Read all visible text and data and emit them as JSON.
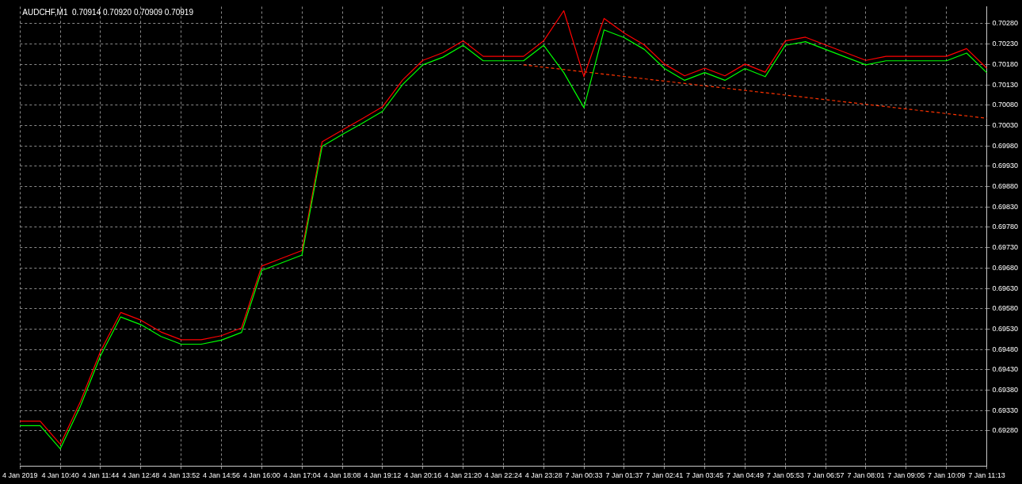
{
  "chart_data": {
    "type": "line",
    "title": "AUDCHF,M1  0.70914 0.70920 0.70909 0.70919",
    "categories": [
      "4 Jan 2019",
      null,
      "4 Jan 10:40",
      null,
      "4 Jan 11:44",
      null,
      "4 Jan 12:48",
      null,
      "4 Jan 13:52",
      null,
      "4 Jan 14:56",
      null,
      "4 Jan 16:00",
      null,
      "4 Jan 17:04",
      null,
      "4 Jan 18:08",
      null,
      "4 Jan 19:12",
      null,
      "4 Jan 20:16",
      null,
      "4 Jan 21:20",
      null,
      "4 Jan 22:24",
      null,
      "4 Jan 23:28",
      null,
      "7 Jan 00:33",
      null,
      "7 Jan 01:37",
      null,
      "7 Jan 02:41",
      null,
      "7 Jan 03:45",
      null,
      "7 Jan 04:49",
      null,
      "7 Jan 05:53",
      null,
      "7 Jan 06:57",
      null,
      "7 Jan 08:01",
      null,
      "7 Jan 09:05",
      null,
      "7 Jan 10:09",
      null,
      "7 Jan 11:13"
    ],
    "series": [
      {
        "color": "#00ff00",
        "values": [
          0.69293,
          0.69293,
          0.69236,
          0.69341,
          0.69465,
          0.6956,
          0.69541,
          0.69512,
          0.69493,
          0.69493,
          0.69503,
          0.69522,
          0.69674,
          0.69693,
          0.69712,
          0.69979,
          0.70008,
          0.70036,
          0.70065,
          0.70131,
          0.70179,
          0.70198,
          0.70227,
          0.70189,
          0.70189,
          0.70189,
          0.70227,
          0.7016,
          0.70074,
          0.70265,
          0.70246,
          0.70217,
          0.7017,
          0.70141,
          0.7016,
          0.70141,
          0.7017,
          0.7015,
          0.70227,
          0.70236,
          0.70217,
          0.70198,
          0.70179,
          0.70189,
          0.70189,
          0.70189,
          0.70189,
          0.70208,
          0.7016
        ]
      },
      {
        "color": "#ff0000",
        "values": [
          0.69304,
          0.69304,
          0.69247,
          0.69352,
          0.69476,
          0.69571,
          0.69552,
          0.69523,
          0.69504,
          0.69504,
          0.69514,
          0.69533,
          0.69685,
          0.69704,
          0.69723,
          0.6999,
          0.70019,
          0.70047,
          0.70076,
          0.70142,
          0.7019,
          0.70209,
          0.70238,
          0.702,
          0.702,
          0.702,
          0.70238,
          0.70312,
          0.7015,
          0.70293,
          0.70257,
          0.70228,
          0.70181,
          0.70152,
          0.70171,
          0.70152,
          0.70181,
          0.70161,
          0.70238,
          0.70247,
          0.70228,
          0.70209,
          0.7019,
          0.702,
          0.702,
          0.702,
          0.702,
          0.70219,
          0.70171
        ]
      },
      {
        "color": "#ff3300",
        "line_style": "dashed",
        "values": [
          null,
          null,
          null,
          null,
          null,
          null,
          null,
          null,
          null,
          null,
          null,
          null,
          null,
          null,
          null,
          null,
          null,
          null,
          null,
          null,
          null,
          null,
          null,
          null,
          null,
          0.70179,
          null,
          null,
          null,
          null,
          null,
          null,
          null,
          null,
          null,
          null,
          null,
          null,
          null,
          null,
          null,
          null,
          null,
          null,
          null,
          null,
          null,
          null,
          0.70048
        ]
      }
    ],
    "ylim": [
      0.69194,
      0.70322
    ],
    "yticks": [
      {
        "value": 0.6928,
        "label": "0.69280"
      },
      {
        "value": 0.6933,
        "label": "0.69330"
      },
      {
        "value": 0.6938,
        "label": "0.69380"
      },
      {
        "value": 0.6943,
        "label": "0.69430"
      },
      {
        "value": 0.6948,
        "label": "0.69480"
      },
      {
        "value": 0.6953,
        "label": "0.69530"
      },
      {
        "value": 0.6958,
        "label": "0.69580"
      },
      {
        "value": 0.6963,
        "label": "0.69630"
      },
      {
        "value": 0.6968,
        "label": "0.69680"
      },
      {
        "value": 0.6973,
        "label": "0.69730"
      },
      {
        "value": 0.6978,
        "label": "0.69780"
      },
      {
        "value": 0.6983,
        "label": "0.69830"
      },
      {
        "value": 0.6988,
        "label": "0.69880"
      },
      {
        "value": 0.6993,
        "label": "0.69930"
      },
      {
        "value": 0.6998,
        "label": "0.69980"
      },
      {
        "value": 0.7003,
        "label": "0.70030"
      },
      {
        "value": 0.7008,
        "label": "0.70080"
      },
      {
        "value": 0.7013,
        "label": "0.70130"
      },
      {
        "value": 0.7018,
        "label": "0.70180"
      },
      {
        "value": 0.7023,
        "label": "0.70230"
      },
      {
        "value": 0.7028,
        "label": "0.70280"
      }
    ],
    "grid": true,
    "legend": false,
    "marker": "none",
    "line_style": "solid"
  }
}
